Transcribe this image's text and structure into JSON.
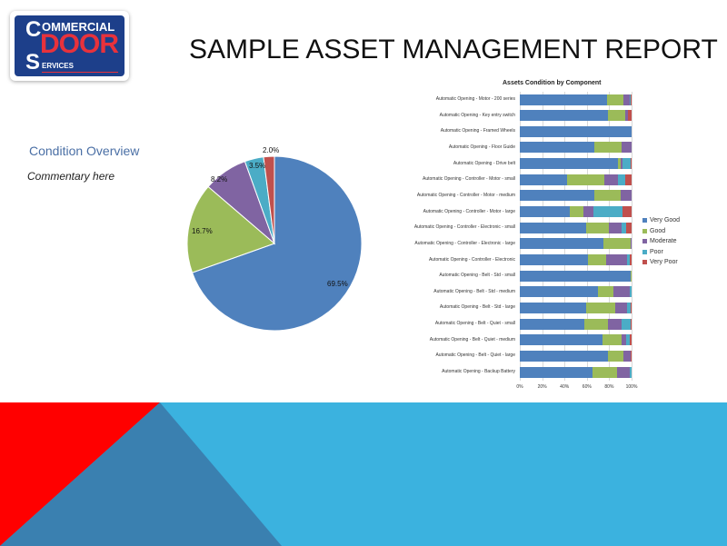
{
  "logo": {
    "line1": "OMMERCIAL",
    "line2": "DOOR",
    "line3": "ERVICES",
    "letter_c": "C",
    "letter_s": "S",
    "alt": "Commercial Door Services"
  },
  "header": {
    "title": "SAMPLE ASSET MANAGEMENT REPORT"
  },
  "overview": {
    "title": "Condition Overview",
    "commentary": "Commentary here"
  },
  "colors": {
    "very_good": "#4f81bd",
    "good": "#9bbb59",
    "moderate": "#8064a2",
    "poor": "#4bacc6",
    "very_poor": "#c0504d",
    "band_light": "#3bb2df",
    "band_dark": "#3a80b0",
    "band_red": "#ff0000"
  },
  "chart_data": [
    {
      "type": "pie",
      "title": "Condition Overview",
      "categories": [
        "Very Good",
        "Good",
        "Moderate",
        "Poor",
        "Very Poor"
      ],
      "values": [
        69.5,
        16.7,
        8.2,
        3.5,
        2.0
      ],
      "labels": [
        "69.5%",
        "16.7%",
        "8.2%",
        "3.5%",
        "2.0%"
      ]
    },
    {
      "type": "bar",
      "orientation": "horizontal",
      "stacked": "100%",
      "title": "Assets Condition  by Component",
      "xlabel": "",
      "ylabel": "",
      "xlim": [
        0,
        100
      ],
      "x_ticks": [
        "0%",
        "20%",
        "40%",
        "60%",
        "80%",
        "100%"
      ],
      "grid": true,
      "legend_position": "right",
      "categories": [
        "Automatic Opening - Motor - 200 series",
        "Automatic Opening - Key entry switch",
        "Automatic Opening - Framed Wheels",
        "Automatic Opening - Floor Guide",
        "Automatic Opening - Drive belt",
        "Automatic Opening - Controller - Motor - small",
        "Automatic Opening - Controller - Motor - medium",
        "Automatic Opening - Controller - Motor - large",
        "Automatic Opening - Controller - Electronic - small",
        "Automatic Opening - Controller - Electronic - large",
        "Automatic Opening - Controller - Electronic",
        "Automatic Opening - Belt - Std - small",
        "Automatic Opening - Belt - Std - medium",
        "Automatic Opening - Belt - Std - large",
        "Automatic Opening - Belt - Quiet - small",
        "Automatic Opening - Belt - Quiet - medium",
        "Automatic Opening - Belt - Quiet - large",
        "Automatic Opening - Backup Battery"
      ],
      "series": [
        {
          "name": "Very Good",
          "values": [
            78,
            79,
            100,
            67,
            88,
            42,
            67,
            45,
            59,
            75,
            61,
            99,
            70,
            59,
            58,
            74,
            79,
            65
          ]
        },
        {
          "name": "Good",
          "values": [
            15,
            15,
            0,
            24,
            2,
            34,
            23,
            12,
            21,
            24,
            16,
            1,
            14,
            26,
            21,
            17,
            14,
            22
          ]
        },
        {
          "name": "Moderate",
          "values": [
            5,
            3,
            0,
            9,
            2,
            12,
            10,
            9,
            11,
            1,
            19,
            0,
            14,
            11,
            12,
            4,
            6,
            11
          ]
        },
        {
          "name": "Poor",
          "values": [
            1,
            0,
            0,
            0,
            7,
            6,
            0,
            26,
            4,
            0,
            2,
            0,
            2,
            3,
            8,
            3,
            0,
            2
          ]
        },
        {
          "name": "Very Poor",
          "values": [
            1,
            3,
            0,
            0,
            1,
            6,
            0,
            8,
            5,
            0,
            2,
            0,
            0,
            1,
            1,
            2,
            1,
            0
          ]
        }
      ]
    }
  ]
}
